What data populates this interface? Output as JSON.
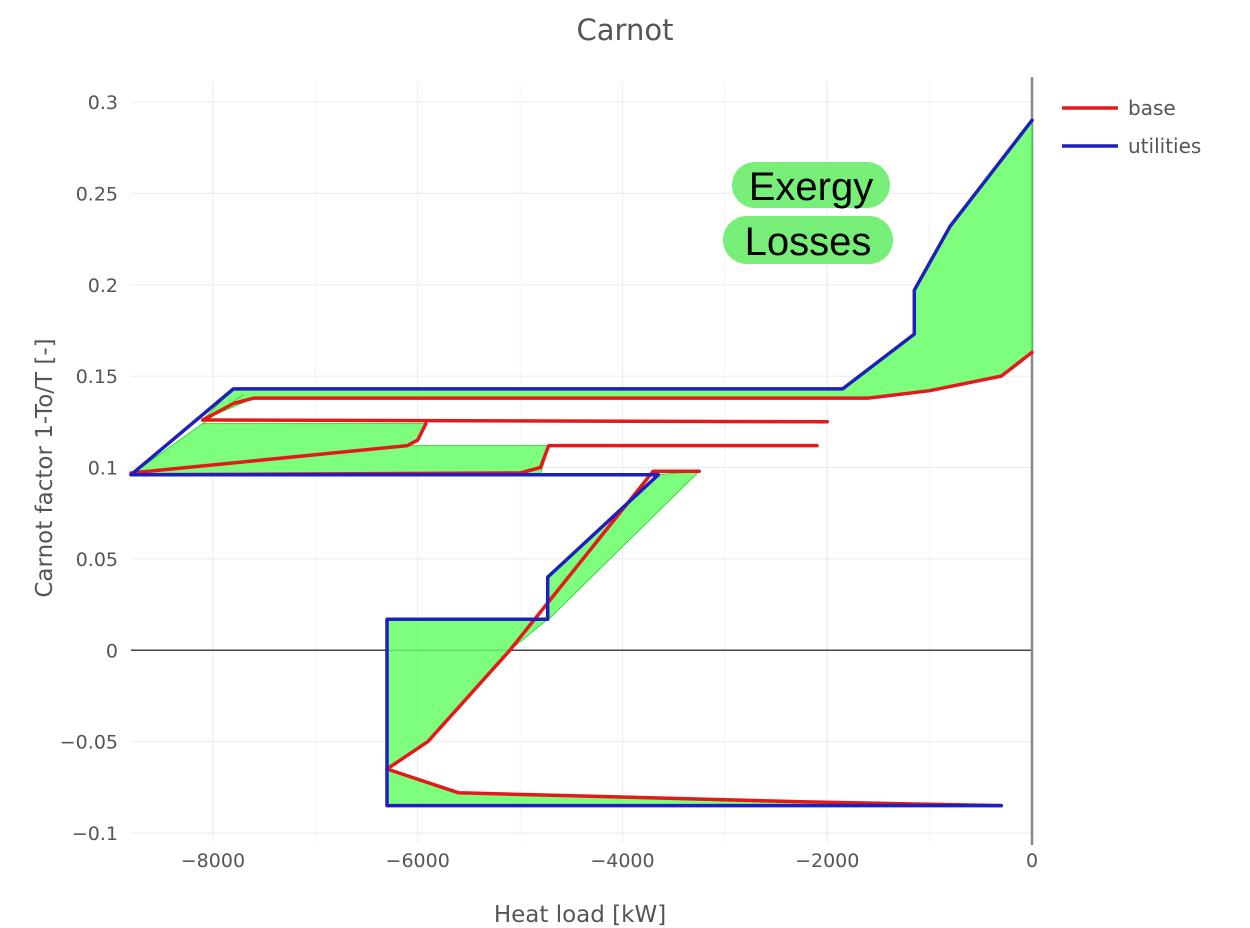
{
  "chart_data": {
    "type": "line",
    "title": "Carnot",
    "xlabel": "Heat load [kW]",
    "ylabel": "Carnot factor 1-To/T [-]",
    "xlim": [
      -8800,
      0
    ],
    "ylim": [
      -0.1,
      0.3
    ],
    "xticks": [
      -8000,
      -6000,
      -4000,
      -2000,
      0
    ],
    "xtick_labels": [
      "−8000",
      "−6000",
      "−4000",
      "−2000",
      "0"
    ],
    "yticks": [
      -0.1,
      -0.05,
      0,
      0.05,
      0.1,
      0.15,
      0.2,
      0.25,
      0.3
    ],
    "ytick_labels": [
      "−0.1",
      "−0.05",
      "0",
      "0.05",
      "0.1",
      "0.15",
      "0.2",
      "0.25",
      "0.3"
    ],
    "grid": true,
    "legend_position": "top-right",
    "series": [
      {
        "name": "base",
        "color": "#e31a1c",
        "segments": [
          [
            [
              0,
              0.163
            ],
            [
              -300,
              0.15
            ],
            [
              -1000,
              0.142
            ],
            [
              -1600,
              0.138
            ],
            [
              -7600,
              0.138
            ],
            [
              -7800,
              0.135
            ],
            [
              -8100,
              0.126
            ]
          ],
          [
            [
              -8100,
              0.126
            ],
            [
              -2000,
              0.125
            ]
          ],
          [
            [
              -5920,
              0.124
            ],
            [
              -6000,
              0.115
            ],
            [
              -6100,
              0.112
            ],
            [
              -8800,
              0.097
            ]
          ],
          [
            [
              -2100,
              0.112
            ],
            [
              -4720,
              0.112
            ],
            [
              -4800,
              0.1
            ],
            [
              -5000,
              0.097
            ],
            [
              -8800,
              0.096
            ]
          ],
          [
            [
              -3250,
              0.098
            ],
            [
              -3700,
              0.098
            ],
            [
              -5100,
              0.0
            ],
            [
              -5900,
              -0.05
            ],
            [
              -6300,
              -0.065
            ],
            [
              -5600,
              -0.078
            ],
            [
              -2200,
              -0.083
            ],
            [
              -300,
              -0.085
            ]
          ]
        ]
      },
      {
        "name": "utilities",
        "color": "#1f1fbf",
        "segments": [
          [
            [
              0,
              0.29
            ],
            [
              -800,
              0.232
            ],
            [
              -1150,
              0.197
            ],
            [
              -1150,
              0.173
            ],
            [
              -1850,
              0.143
            ],
            [
              -7800,
              0.143
            ],
            [
              -8800,
              0.096
            ],
            [
              -3650,
              0.096
            ],
            [
              -4730,
              0.04
            ],
            [
              -4730,
              0.017
            ],
            [
              -6300,
              0.017
            ],
            [
              -6300,
              -0.085
            ],
            [
              -300,
              -0.085
            ]
          ]
        ]
      }
    ],
    "filled_regions": [
      [
        [
          0,
          0.29
        ],
        [
          -800,
          0.232
        ],
        [
          -1150,
          0.197
        ],
        [
          -1150,
          0.173
        ],
        [
          -1850,
          0.143
        ],
        [
          -7800,
          0.143
        ],
        [
          -8100,
          0.126
        ],
        [
          -7600,
          0.138
        ],
        [
          -1600,
          0.138
        ],
        [
          -1000,
          0.142
        ],
        [
          -300,
          0.15
        ],
        [
          0,
          0.163
        ]
      ],
      [
        [
          -7700,
          0.14
        ],
        [
          -8800,
          0.096
        ],
        [
          -4800,
          0.096
        ],
        [
          -4720,
          0.112
        ],
        [
          -6100,
          0.112
        ],
        [
          -6000,
          0.115
        ],
        [
          -5920,
          0.124
        ],
        [
          -8100,
          0.124
        ]
      ],
      [
        [
          -3650,
          0.096
        ],
        [
          -3250,
          0.098
        ],
        [
          -4720,
          0.017
        ],
        [
          -4730,
          0.017
        ],
        [
          -4730,
          0.04
        ]
      ],
      [
        [
          -4730,
          0.017
        ],
        [
          -6300,
          0.017
        ],
        [
          -6300,
          -0.065
        ],
        [
          -5900,
          -0.05
        ],
        [
          -5100,
          0.0
        ]
      ],
      [
        [
          -6300,
          -0.065
        ],
        [
          -5600,
          -0.078
        ],
        [
          -2200,
          -0.083
        ],
        [
          -300,
          -0.085
        ],
        [
          -6300,
          -0.085
        ]
      ]
    ],
    "fill_color": "#66ff66",
    "annotation": {
      "lines": [
        "Exergy",
        "Losses"
      ],
      "x": -2700,
      "y": 0.245,
      "background": "#77ee77"
    }
  }
}
